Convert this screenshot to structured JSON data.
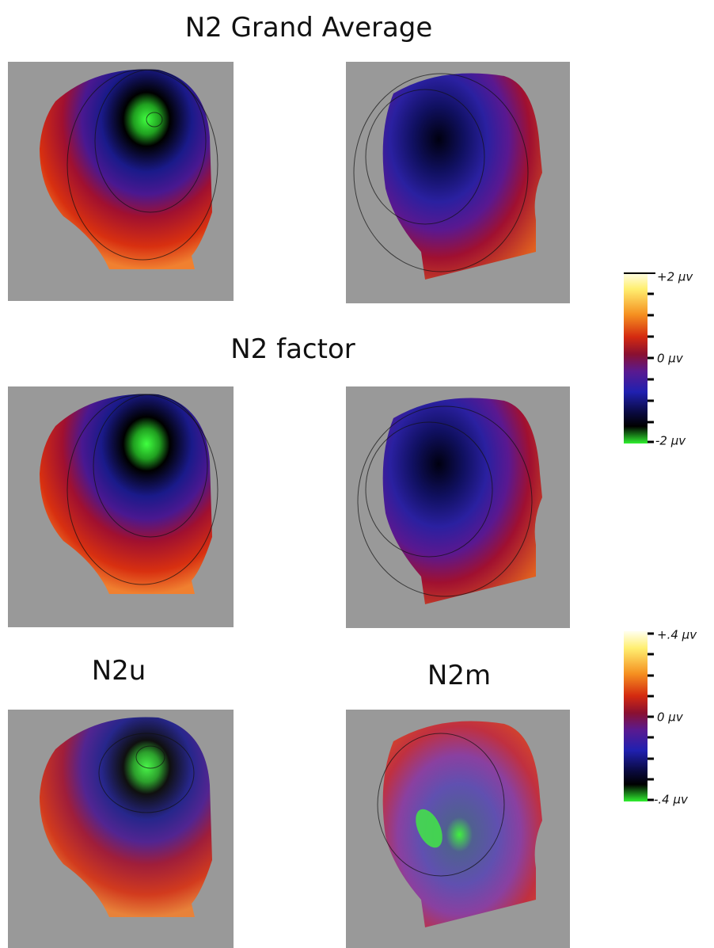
{
  "titles": [
    "N2 Grand Average",
    "N2 factor",
    "N2u",
    "N2m"
  ],
  "colorbars": [
    {
      "labels": [
        "+2 μv",
        "0 μv",
        "-2 μv"
      ]
    },
    {
      "labels": [
        "+.4 μv",
        "0 μv",
        "-.4 μv"
      ]
    }
  ]
}
